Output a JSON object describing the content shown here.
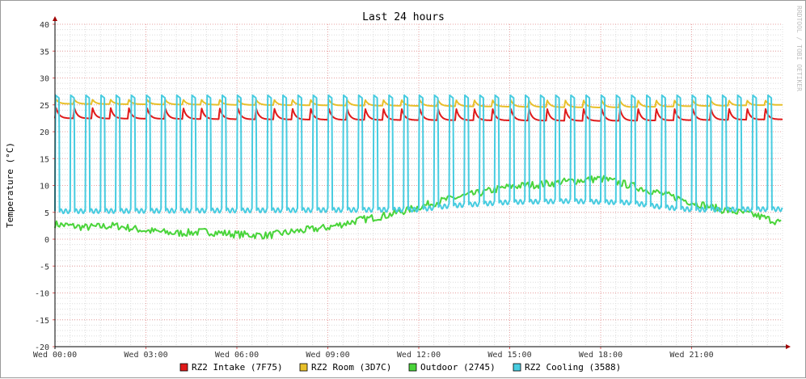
{
  "chart_data": {
    "type": "line",
    "title": "Last 24 hours",
    "ylabel": "Temperature (°C)",
    "watermark": "RRDTOOL / TOBI OETIKER",
    "ylim": [
      -20,
      40
    ],
    "y_ticks": [
      40,
      35,
      30,
      25,
      20,
      15,
      10,
      5,
      0,
      -5,
      -10,
      -15,
      -20
    ],
    "x_range_hours": [
      0,
      24
    ],
    "x_ticks": [
      {
        "hour": 0,
        "label": "Wed 00:00"
      },
      {
        "hour": 3,
        "label": "Wed 03:00"
      },
      {
        "hour": 6,
        "label": "Wed 06:00"
      },
      {
        "hour": 9,
        "label": "Wed 09:00"
      },
      {
        "hour": 12,
        "label": "Wed 12:00"
      },
      {
        "hour": 15,
        "label": "Wed 15:00"
      },
      {
        "hour": 18,
        "label": "Wed 18:00"
      },
      {
        "hour": 21,
        "label": "Wed 21:00"
      }
    ],
    "grid": true,
    "legend_position": "bottom",
    "series": [
      {
        "name": "RZ2 Intake (7F75)",
        "color": "#e01a1a",
        "pattern": "sawtooth",
        "period_h": 0.6,
        "high": [
          [
            0,
            24.5
          ],
          [
            10,
            24.3
          ],
          [
            24,
            24.3
          ]
        ],
        "low": [
          [
            0,
            22.5
          ],
          [
            10,
            22.2
          ],
          [
            15,
            22.1
          ],
          [
            18,
            22
          ],
          [
            24,
            22.3
          ]
        ]
      },
      {
        "name": "RZ2 Room (3D7C)",
        "color": "#e8c02a",
        "pattern": "sawtooth",
        "period_h": 0.6,
        "high": [
          [
            0,
            26.0
          ],
          [
            24,
            25.8
          ]
        ],
        "low": [
          [
            0,
            25.2
          ],
          [
            12,
            24.8
          ],
          [
            18,
            24.5
          ],
          [
            24,
            25.0
          ]
        ]
      },
      {
        "name": "Outdoor (2745)",
        "color": "#4ad43a",
        "pattern": "noisy",
        "points": [
          [
            0,
            2.8
          ],
          [
            1,
            2.2
          ],
          [
            2,
            2.5
          ],
          [
            3,
            1.6
          ],
          [
            4,
            1.1
          ],
          [
            5,
            1.4
          ],
          [
            6,
            0.9
          ],
          [
            7,
            0.7
          ],
          [
            8,
            1.5
          ],
          [
            9,
            2.2
          ],
          [
            10,
            3.5
          ],
          [
            11,
            4.5
          ],
          [
            12,
            6.0
          ],
          [
            13,
            7.5
          ],
          [
            14,
            8.6
          ],
          [
            15,
            9.8
          ],
          [
            16,
            10.2
          ],
          [
            17,
            10.8
          ],
          [
            18,
            11.3
          ],
          [
            19,
            10.0
          ],
          [
            20,
            8.5
          ],
          [
            21,
            6.9
          ],
          [
            22,
            5.5
          ],
          [
            23,
            4.6
          ],
          [
            24,
            3.0
          ]
        ]
      },
      {
        "name": "RZ2 Cooling (3588)",
        "color": "#48cce0",
        "pattern": "square",
        "period_h": 0.5,
        "duty_high": 0.27,
        "high": [
          [
            0,
            26.8
          ],
          [
            24,
            26.8
          ]
        ],
        "low": [
          [
            0,
            5.2
          ],
          [
            12,
            5.5
          ],
          [
            13,
            6.2
          ],
          [
            15,
            6.9
          ],
          [
            17,
            7.1
          ],
          [
            19,
            6.8
          ],
          [
            20,
            6.0
          ],
          [
            21,
            5.5
          ],
          [
            24,
            5.6
          ]
        ]
      }
    ]
  }
}
